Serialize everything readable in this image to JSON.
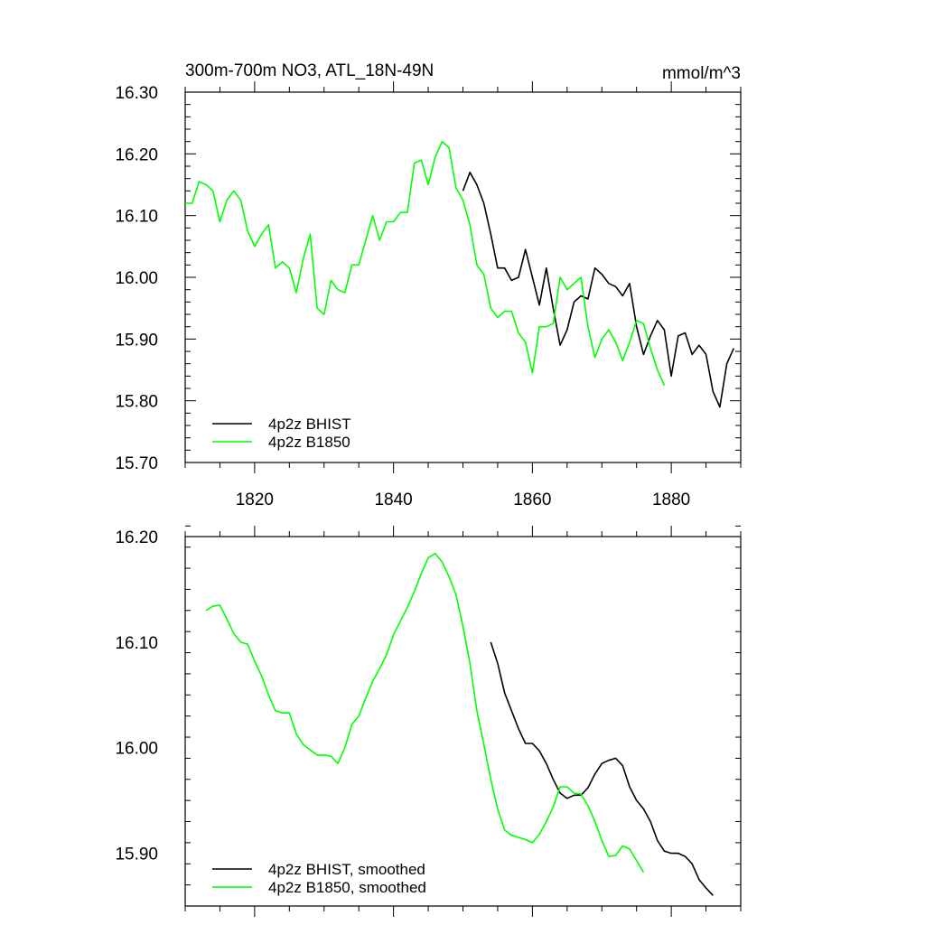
{
  "chart_data": [
    {
      "type": "line",
      "title": "300m-700m NO3, ATL_18N-49N",
      "units_label": "mmol/m^3",
      "xlabel": "",
      "ylabel": "",
      "xlim": [
        1810,
        1890
      ],
      "ylim": [
        15.7,
        16.3
      ],
      "yticks": [
        15.7,
        15.8,
        15.9,
        16.0,
        16.1,
        16.2,
        16.3
      ],
      "ytick_labels": [
        "15.70",
        "15.80",
        "15.90",
        "16.00",
        "16.10",
        "16.20",
        "16.30"
      ],
      "xticks": [
        1820,
        1840,
        1860,
        1880
      ],
      "xtick_labels": [
        "1820",
        "1840",
        "1860",
        "1880"
      ],
      "legend_position": "bottom-left",
      "grid": false,
      "series": [
        {
          "name": "4p2z BHIST",
          "color": "#000000",
          "x": [
            1850,
            1851,
            1852,
            1853,
            1854,
            1855,
            1856,
            1857,
            1858,
            1859,
            1860,
            1861,
            1862,
            1863,
            1864,
            1865,
            1866,
            1867,
            1868,
            1869,
            1870,
            1871,
            1872,
            1873,
            1874,
            1875,
            1876,
            1877,
            1878,
            1879,
            1880,
            1881,
            1882,
            1883,
            1884,
            1885,
            1886,
            1887,
            1888,
            1889
          ],
          "y": [
            16.14,
            16.17,
            16.15,
            16.12,
            16.07,
            16.015,
            16.015,
            15.995,
            16.0,
            16.045,
            16.0,
            15.955,
            16.015,
            15.95,
            15.89,
            15.915,
            15.96,
            15.97,
            15.965,
            16.015,
            16.005,
            15.99,
            15.985,
            15.97,
            15.99,
            15.92,
            15.875,
            15.905,
            15.93,
            15.915,
            15.84,
            15.905,
            15.91,
            15.875,
            15.89,
            15.875,
            15.815,
            15.79,
            15.86,
            15.885
          ]
        },
        {
          "name": "4p2z B1850",
          "color": "#00ff00",
          "x": [
            1810,
            1811,
            1812,
            1813,
            1814,
            1815,
            1816,
            1817,
            1818,
            1819,
            1820,
            1821,
            1822,
            1823,
            1824,
            1825,
            1826,
            1827,
            1828,
            1829,
            1830,
            1831,
            1832,
            1833,
            1834,
            1835,
            1836,
            1837,
            1838,
            1839,
            1840,
            1841,
            1842,
            1843,
            1844,
            1845,
            1846,
            1847,
            1848,
            1849,
            1850,
            1851,
            1852,
            1853,
            1854,
            1855,
            1856,
            1857,
            1858,
            1859,
            1860,
            1861,
            1862,
            1863,
            1864,
            1865,
            1866,
            1867,
            1868,
            1869,
            1870,
            1871,
            1872,
            1873,
            1874,
            1875,
            1876,
            1877,
            1878,
            1879
          ],
          "y": [
            16.12,
            16.12,
            16.155,
            16.15,
            16.14,
            16.09,
            16.125,
            16.14,
            16.125,
            16.075,
            16.05,
            16.07,
            16.085,
            16.015,
            16.025,
            16.015,
            15.975,
            16.03,
            16.07,
            15.95,
            15.94,
            15.995,
            15.98,
            15.975,
            16.02,
            16.02,
            16.06,
            16.1,
            16.06,
            16.09,
            16.09,
            16.105,
            16.105,
            16.185,
            16.19,
            16.15,
            16.195,
            16.22,
            16.21,
            16.145,
            16.125,
            16.085,
            16.02,
            16.005,
            15.95,
            15.935,
            15.945,
            15.945,
            15.91,
            15.895,
            15.845,
            15.92,
            15.92,
            15.925,
            16.0,
            15.98,
            15.99,
            16.0,
            15.92,
            15.87,
            15.9,
            15.915,
            15.895,
            15.865,
            15.895,
            15.93,
            15.925,
            15.885,
            15.85,
            15.825
          ]
        }
      ]
    },
    {
      "type": "line",
      "title": "",
      "xlabel": "",
      "ylabel": "",
      "xlim": [
        1810,
        1890
      ],
      "ylim": [
        15.85,
        16.2
      ],
      "yticks": [
        15.9,
        16.0,
        16.1,
        16.2
      ],
      "ytick_labels": [
        "15.90",
        "16.00",
        "16.10",
        "16.20"
      ],
      "xticks": [
        1820,
        1840,
        1860,
        1880
      ],
      "legend_position": "bottom-left",
      "grid": false,
      "series": [
        {
          "name": "4p2z BHIST, smoothed",
          "color": "#000000",
          "x": [
            1854,
            1855,
            1856,
            1857,
            1858,
            1859,
            1860,
            1861,
            1862,
            1863,
            1864,
            1865,
            1866,
            1867,
            1868,
            1869,
            1870,
            1871,
            1872,
            1873,
            1874,
            1875,
            1876,
            1877,
            1878,
            1879,
            1880,
            1881,
            1882,
            1883,
            1884,
            1885,
            1886
          ],
          "y": [
            16.1,
            16.08,
            16.052,
            16.035,
            16.018,
            16.004,
            16.004,
            15.997,
            15.985,
            15.97,
            15.957,
            15.952,
            15.955,
            15.955,
            15.962,
            15.975,
            15.985,
            15.988,
            15.99,
            15.983,
            15.963,
            15.95,
            15.942,
            15.93,
            15.912,
            15.902,
            15.9,
            15.9,
            15.897,
            15.89,
            15.875,
            15.867,
            15.86
          ]
        },
        {
          "name": "4p2z B1850, smoothed",
          "color": "#00ff00",
          "x": [
            1813,
            1814,
            1815,
            1816,
            1817,
            1818,
            1819,
            1820,
            1821,
            1822,
            1823,
            1824,
            1825,
            1826,
            1827,
            1828,
            1829,
            1830,
            1831,
            1832,
            1833,
            1834,
            1835,
            1836,
            1837,
            1838,
            1839,
            1840,
            1841,
            1842,
            1843,
            1844,
            1845,
            1846,
            1847,
            1848,
            1849,
            1850,
            1851,
            1852,
            1853,
            1854,
            1855,
            1856,
            1857,
            1858,
            1859,
            1860,
            1861,
            1862,
            1863,
            1864,
            1865,
            1866,
            1867,
            1868,
            1869,
            1870,
            1871,
            1872,
            1873,
            1874,
            1875,
            1876
          ],
          "y": [
            16.13,
            16.134,
            16.135,
            16.122,
            16.108,
            16.1,
            16.098,
            16.082,
            16.068,
            16.05,
            16.035,
            16.033,
            16.033,
            16.013,
            16.003,
            15.998,
            15.993,
            15.993,
            15.992,
            15.985,
            16.0,
            16.022,
            16.03,
            16.047,
            16.063,
            16.075,
            16.088,
            16.107,
            16.12,
            16.133,
            16.148,
            16.165,
            16.18,
            16.184,
            16.176,
            16.162,
            16.145,
            16.115,
            16.08,
            16.035,
            16.003,
            15.97,
            15.942,
            15.922,
            15.917,
            15.915,
            15.913,
            15.91,
            15.918,
            15.93,
            15.944,
            15.963,
            15.963,
            15.957,
            15.956,
            15.945,
            15.93,
            15.912,
            15.897,
            15.898,
            15.907,
            15.904,
            15.893,
            15.882
          ]
        }
      ]
    }
  ]
}
